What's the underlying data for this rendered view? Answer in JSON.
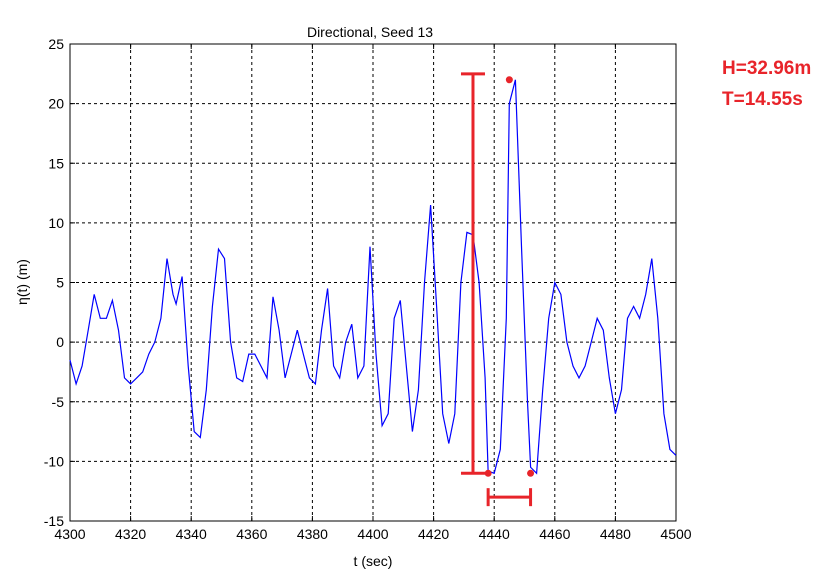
{
  "chart_data": {
    "type": "line",
    "title": "Directional, Seed 13",
    "xlabel": "t (sec)",
    "ylabel": "η(t) (m)",
    "xlim": [
      4300,
      4500
    ],
    "ylim": [
      -15,
      25
    ],
    "xticks": [
      4300,
      4320,
      4340,
      4360,
      4380,
      4400,
      4420,
      4440,
      4460,
      4480,
      4500
    ],
    "yticks": [
      -15,
      -10,
      -5,
      0,
      5,
      10,
      15,
      20,
      25
    ],
    "grid": true,
    "line_color": "#0000ff",
    "series": [
      {
        "x": [
          4300,
          4302,
          4304,
          4306,
          4308,
          4310,
          4312,
          4314,
          4316,
          4318,
          4320,
          4322,
          4324,
          4326,
          4328,
          4330,
          4332,
          4334,
          4335,
          4337,
          4339,
          4341,
          4343,
          4345,
          4347,
          4349,
          4351,
          4353,
          4355,
          4357,
          4359,
          4361,
          4363,
          4365,
          4367,
          4369,
          4371,
          4373,
          4375,
          4377,
          4379,
          4381,
          4383,
          4385,
          4387,
          4389,
          4391,
          4393,
          4395,
          4397,
          4399,
          4401,
          4403,
          4405,
          4407,
          4409,
          4411,
          4413,
          4415,
          4417,
          4419,
          4421,
          4423,
          4425,
          4427,
          4429,
          4431,
          4433,
          4435,
          4437,
          4438,
          4440,
          4442,
          4444,
          4445,
          4447,
          4449,
          4451,
          4452,
          4454,
          4456,
          4458,
          4460,
          4462,
          4464,
          4466,
          4468,
          4470,
          4472,
          4474,
          4476,
          4478,
          4480,
          4482,
          4484,
          4486,
          4488,
          4490,
          4492,
          4494,
          4496,
          4498,
          4500
        ],
        "y": [
          -1.5,
          -3.5,
          -2,
          1,
          4,
          2,
          2,
          3.5,
          1,
          -3,
          -3.5,
          -3,
          -2.5,
          -1,
          0,
          2,
          7,
          4,
          3.2,
          5.5,
          -2,
          -7.5,
          -8,
          -4,
          3,
          7.8,
          7,
          0,
          -3,
          -3.3,
          -1,
          -1,
          -2,
          -3,
          3.8,
          1,
          -3,
          -1,
          1,
          -1,
          -3,
          -3.5,
          1,
          4.5,
          -2,
          -3,
          0,
          1.5,
          -3,
          -2,
          8,
          -1,
          -7,
          -6,
          2,
          3.5,
          -2,
          -7.5,
          -4,
          5,
          11.5,
          3,
          -6,
          -8.5,
          -6,
          5,
          9.2,
          9,
          5,
          -3,
          -10.8,
          -11,
          -9,
          2,
          20,
          22,
          8,
          -5,
          -10.5,
          -11,
          -4,
          2,
          5,
          4,
          0,
          -2,
          -3,
          -2,
          0,
          2,
          1,
          -3,
          -6,
          -4,
          2,
          3,
          2,
          4,
          7,
          2,
          -6,
          -9,
          -9.5
        ]
      }
    ],
    "annotations": {
      "height_label": "H=32.96m",
      "period_label": "T=14.55s",
      "color": "#e8242a",
      "crest": {
        "x": 4445,
        "y": 22
      },
      "trough_left": {
        "x": 4438,
        "y": -11
      },
      "trough_right": {
        "x": 4452,
        "y": -11
      },
      "height_bar": {
        "x": 4433,
        "y1": -11,
        "y2": 22.5
      },
      "period_bar": {
        "x1": 4438,
        "x2": 4452,
        "y": -13
      }
    }
  }
}
